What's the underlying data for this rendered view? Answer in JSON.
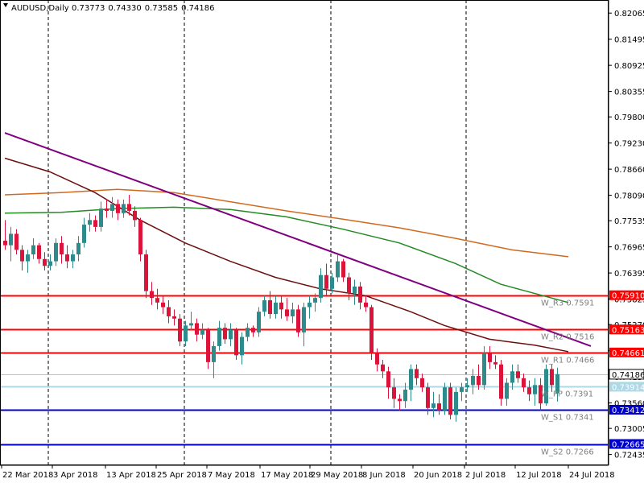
{
  "chart_data": {
    "type": "candlestick",
    "symbol_label": "AUDUSD,Daily",
    "ohlc_header": [
      "0.73773",
      "0.74330",
      "0.73585",
      "0.74186"
    ],
    "x_tick_labels": [
      "22 Mar 2018",
      "3 Apr 2018",
      "13 Apr 2018",
      "25 Apr 2018",
      "7 May 2018",
      "17 May 2018",
      "29 May 2018",
      "8 Jun 2018",
      "20 Jun 2018",
      "2 Jul 2018",
      "12 Jul 2018",
      "24 Jul 2018"
    ],
    "y_tick_labels": [
      "0.82065",
      "0.81495",
      "0.80925",
      "0.80355",
      "0.79800",
      "0.79230",
      "0.78660",
      "0.78090",
      "0.77535",
      "0.76965",
      "0.76395",
      "0.75825",
      "0.75270",
      "0.74700",
      "0.74130",
      "0.73560",
      "0.73005",
      "0.72435"
    ],
    "y_range": [
      0.722,
      0.8235
    ],
    "grid": "vertical dashed separators",
    "horizontal_levels": [
      {
        "price": 0.7591,
        "axis_label": "0.75910",
        "level_label": "W_R3 0.7591",
        "color": "#ff0000",
        "style": "solid"
      },
      {
        "price": 0.75163,
        "axis_label": "0.75163",
        "level_label": "W_R2 0.7516",
        "color": "#ff0000",
        "style": "solid"
      },
      {
        "price": 0.74661,
        "axis_label": "0.74661",
        "level_label": "W_R1 0.7466",
        "color": "#ff0000",
        "style": "solid"
      },
      {
        "price": 0.74186,
        "axis_label": "0.74186",
        "level_label": "",
        "color": "#c0c0c0",
        "style": "thin"
      },
      {
        "price": 0.73914,
        "axis_label": "0.73914",
        "level_label": "W_PP 0.7391",
        "color": "#add8e6",
        "style": "solid"
      },
      {
        "price": 0.73412,
        "axis_label": "0.73412",
        "level_label": "W_S1 0.7341",
        "color": "#0000cd",
        "style": "solid"
      },
      {
        "price": 0.72665,
        "axis_label": "0.72665",
        "level_label": "W_S2 0.7266",
        "color": "#0000cd",
        "style": "solid"
      }
    ],
    "colors": {
      "bull": "#2e8b8b",
      "bear": "#dc143c",
      "ma_brown": "#6b0f0f",
      "ma_green": "#228b22",
      "ma_orange": "#d2691e",
      "trendline": "#800080"
    },
    "candles": [
      [
        0.771,
        0.7755,
        0.769,
        0.77
      ],
      [
        0.77,
        0.774,
        0.7665,
        0.7725
      ],
      [
        0.7725,
        0.7735,
        0.768,
        0.769
      ],
      [
        0.769,
        0.77,
        0.7645,
        0.7665
      ],
      [
        0.7665,
        0.769,
        0.764,
        0.768
      ],
      [
        0.768,
        0.7715,
        0.767,
        0.77
      ],
      [
        0.77,
        0.7705,
        0.766,
        0.767
      ],
      [
        0.767,
        0.7685,
        0.7645,
        0.7655
      ],
      [
        0.7655,
        0.768,
        0.7645,
        0.7665
      ],
      [
        0.7665,
        0.7715,
        0.7655,
        0.7705
      ],
      [
        0.7705,
        0.772,
        0.766,
        0.768
      ],
      [
        0.768,
        0.77,
        0.765,
        0.7665
      ],
      [
        0.7665,
        0.769,
        0.765,
        0.768
      ],
      [
        0.768,
        0.772,
        0.7665,
        0.7705
      ],
      [
        0.7705,
        0.776,
        0.7695,
        0.7745
      ],
      [
        0.7745,
        0.777,
        0.773,
        0.7755
      ],
      [
        0.7755,
        0.7765,
        0.773,
        0.774
      ],
      [
        0.774,
        0.7795,
        0.773,
        0.778
      ],
      [
        0.778,
        0.78,
        0.776,
        0.7775
      ],
      [
        0.7775,
        0.7805,
        0.776,
        0.779
      ],
      [
        0.779,
        0.78,
        0.7755,
        0.777
      ],
      [
        0.777,
        0.78,
        0.776,
        0.779
      ],
      [
        0.779,
        0.781,
        0.7765,
        0.7775
      ],
      [
        0.7775,
        0.7785,
        0.774,
        0.7755
      ],
      [
        0.7755,
        0.776,
        0.7665,
        0.768
      ],
      [
        0.768,
        0.769,
        0.7585,
        0.76
      ],
      [
        0.76,
        0.762,
        0.757,
        0.7585
      ],
      [
        0.7585,
        0.7605,
        0.756,
        0.7575
      ],
      [
        0.7575,
        0.759,
        0.755,
        0.7565
      ],
      [
        0.7565,
        0.758,
        0.753,
        0.7545
      ],
      [
        0.7545,
        0.756,
        0.7525,
        0.754
      ],
      [
        0.754,
        0.755,
        0.748,
        0.749
      ],
      [
        0.749,
        0.7535,
        0.748,
        0.7525
      ],
      [
        0.7525,
        0.7555,
        0.7515,
        0.753
      ],
      [
        0.753,
        0.754,
        0.749,
        0.7505
      ],
      [
        0.7505,
        0.753,
        0.7495,
        0.7515
      ],
      [
        0.7515,
        0.752,
        0.743,
        0.7445
      ],
      [
        0.7445,
        0.749,
        0.741,
        0.748
      ],
      [
        0.748,
        0.7535,
        0.747,
        0.752
      ],
      [
        0.752,
        0.753,
        0.7485,
        0.7495
      ],
      [
        0.7495,
        0.753,
        0.748,
        0.7515
      ],
      [
        0.7515,
        0.752,
        0.745,
        0.746
      ],
      [
        0.746,
        0.751,
        0.744,
        0.75
      ],
      [
        0.75,
        0.753,
        0.749,
        0.752
      ],
      [
        0.752,
        0.7525,
        0.75,
        0.751
      ],
      [
        0.751,
        0.7565,
        0.75,
        0.7555
      ],
      [
        0.7555,
        0.759,
        0.7545,
        0.758
      ],
      [
        0.758,
        0.76,
        0.754,
        0.755
      ],
      [
        0.755,
        0.759,
        0.754,
        0.7575
      ],
      [
        0.7575,
        0.759,
        0.754,
        0.756
      ],
      [
        0.756,
        0.7585,
        0.7535,
        0.7545
      ],
      [
        0.7545,
        0.7575,
        0.753,
        0.756
      ],
      [
        0.756,
        0.757,
        0.75,
        0.751
      ],
      [
        0.751,
        0.7575,
        0.748,
        0.7565
      ],
      [
        0.7565,
        0.759,
        0.754,
        0.7575
      ],
      [
        0.7575,
        0.7595,
        0.7555,
        0.7585
      ],
      [
        0.7585,
        0.765,
        0.7575,
        0.7635
      ],
      [
        0.7635,
        0.766,
        0.759,
        0.7605
      ],
      [
        0.7605,
        0.764,
        0.7595,
        0.763
      ],
      [
        0.763,
        0.768,
        0.762,
        0.7665
      ],
      [
        0.7665,
        0.767,
        0.762,
        0.763
      ],
      [
        0.763,
        0.764,
        0.758,
        0.7595
      ],
      [
        0.7595,
        0.7625,
        0.757,
        0.761
      ],
      [
        0.761,
        0.762,
        0.756,
        0.7575
      ],
      [
        0.7575,
        0.759,
        0.7555,
        0.7565
      ],
      [
        0.7565,
        0.757,
        0.745,
        0.7465
      ],
      [
        0.7465,
        0.7475,
        0.7425,
        0.744
      ],
      [
        0.744,
        0.745,
        0.741,
        0.7425
      ],
      [
        0.7425,
        0.7435,
        0.7365,
        0.739
      ],
      [
        0.739,
        0.741,
        0.7345,
        0.7365
      ],
      [
        0.7365,
        0.7375,
        0.734,
        0.736
      ],
      [
        0.736,
        0.74,
        0.7345,
        0.7385
      ],
      [
        0.7385,
        0.744,
        0.736,
        0.743
      ],
      [
        0.743,
        0.744,
        0.7395,
        0.741
      ],
      [
        0.741,
        0.742,
        0.738,
        0.739
      ],
      [
        0.739,
        0.74,
        0.733,
        0.7345
      ],
      [
        0.7345,
        0.738,
        0.7325,
        0.7355
      ],
      [
        0.7355,
        0.7375,
        0.733,
        0.734
      ],
      [
        0.734,
        0.74,
        0.733,
        0.739
      ],
      [
        0.739,
        0.74,
        0.732,
        0.733
      ],
      [
        0.733,
        0.739,
        0.7315,
        0.738
      ],
      [
        0.738,
        0.74,
        0.736,
        0.739
      ],
      [
        0.739,
        0.741,
        0.738,
        0.7395
      ],
      [
        0.7395,
        0.743,
        0.7375,
        0.7415
      ],
      [
        0.7415,
        0.744,
        0.7385,
        0.7395
      ],
      [
        0.7395,
        0.748,
        0.7385,
        0.7465
      ],
      [
        0.7465,
        0.748,
        0.743,
        0.7445
      ],
      [
        0.7445,
        0.746,
        0.743,
        0.744
      ],
      [
        0.744,
        0.745,
        0.735,
        0.7365
      ],
      [
        0.7365,
        0.741,
        0.735,
        0.74
      ],
      [
        0.74,
        0.744,
        0.7385,
        0.7425
      ],
      [
        0.7425,
        0.744,
        0.74,
        0.741
      ],
      [
        0.741,
        0.742,
        0.738,
        0.739
      ],
      [
        0.739,
        0.7405,
        0.736,
        0.7375
      ],
      [
        0.7375,
        0.741,
        0.735,
        0.7395
      ],
      [
        0.7395,
        0.741,
        0.734,
        0.7355
      ],
      [
        0.7355,
        0.744,
        0.735,
        0.743
      ],
      [
        0.743,
        0.744,
        0.738,
        0.7395
      ],
      [
        0.7377,
        0.7433,
        0.7359,
        0.7419
      ]
    ],
    "ma_brown": [
      [
        0,
        0.789
      ],
      [
        8,
        0.786
      ],
      [
        16,
        0.7815
      ],
      [
        24,
        0.7755
      ],
      [
        32,
        0.7705
      ],
      [
        40,
        0.7665
      ],
      [
        48,
        0.763
      ],
      [
        56,
        0.7605
      ],
      [
        64,
        0.759
      ],
      [
        72,
        0.7555
      ],
      [
        78,
        0.7525
      ],
      [
        86,
        0.7495
      ],
      [
        94,
        0.7482
      ],
      [
        100,
        0.7468
      ]
    ],
    "ma_green": [
      [
        0,
        0.777
      ],
      [
        10,
        0.7772
      ],
      [
        20,
        0.778
      ],
      [
        30,
        0.7783
      ],
      [
        40,
        0.7778
      ],
      [
        50,
        0.7762
      ],
      [
        60,
        0.7735
      ],
      [
        70,
        0.7705
      ],
      [
        80,
        0.766
      ],
      [
        88,
        0.7615
      ],
      [
        100,
        0.7575
      ]
    ],
    "ma_orange": [
      [
        0,
        0.781
      ],
      [
        10,
        0.7815
      ],
      [
        20,
        0.7822
      ],
      [
        30,
        0.7815
      ],
      [
        40,
        0.7795
      ],
      [
        50,
        0.7775
      ],
      [
        60,
        0.7757
      ],
      [
        70,
        0.7738
      ],
      [
        80,
        0.7715
      ],
      [
        90,
        0.769
      ],
      [
        100,
        0.7675
      ]
    ],
    "trendline": [
      [
        0,
        0.7945
      ],
      [
        104,
        0.748
      ]
    ]
  }
}
